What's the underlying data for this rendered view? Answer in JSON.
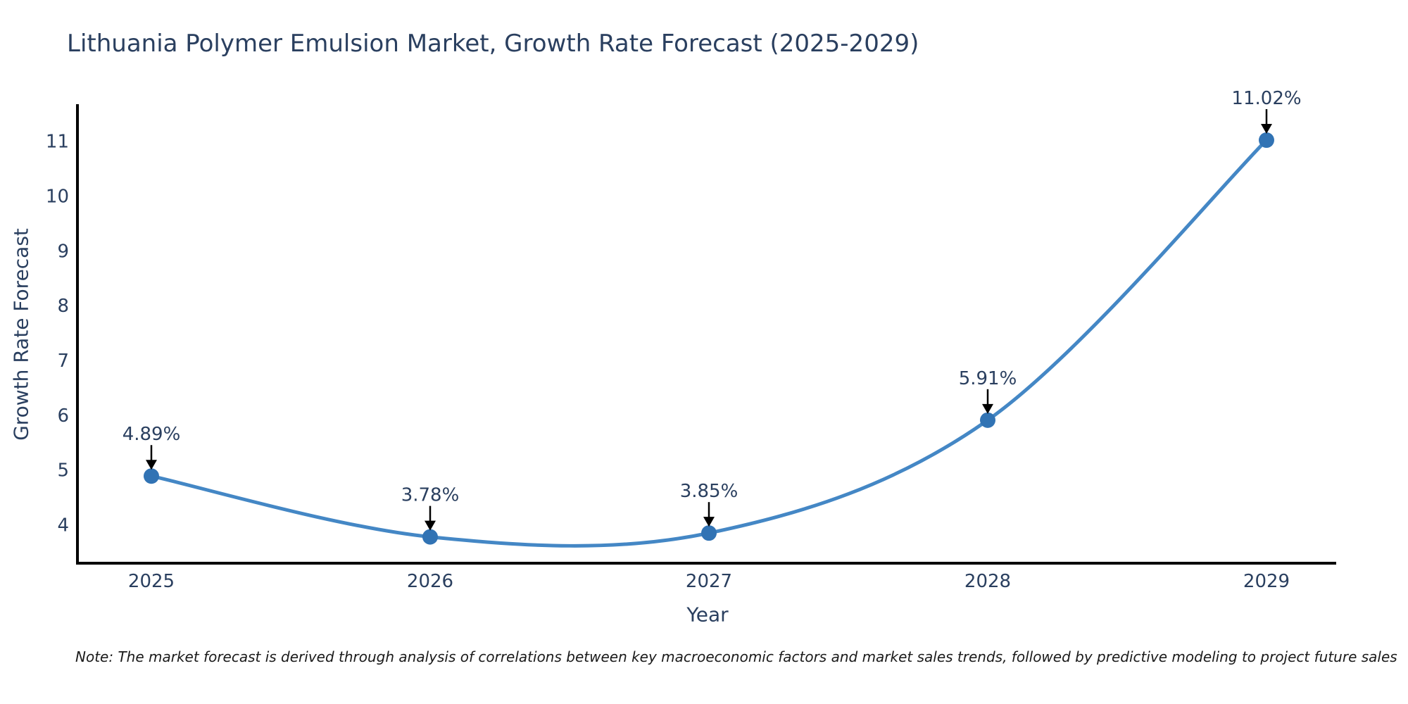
{
  "chart_data": {
    "type": "line",
    "title": "Lithuania Polymer Emulsion Market, Growth Rate Forecast (2025-2029)",
    "xlabel": "Year",
    "ylabel": "Growth Rate Forecast",
    "categories": [
      "2025",
      "2026",
      "2027",
      "2028",
      "2029"
    ],
    "series": [
      {
        "name": "Growth Rate Forecast",
        "values": [
          4.89,
          3.78,
          3.85,
          5.91,
          11.02
        ],
        "point_labels": [
          "4.89%",
          "3.78%",
          "3.85%",
          "5.91%",
          "11.02%"
        ]
      }
    ],
    "yticks": [
      4,
      5,
      6,
      7,
      8,
      9,
      10,
      11
    ],
    "ylim": [
      3.3,
      11.65
    ],
    "line_shape": "spline",
    "grid": false,
    "legend": "none",
    "colors": {
      "line": "#4487c5",
      "marker": "#3173b4",
      "axis": "#000000",
      "text": "#2a3f5f",
      "annotation_arrow": "#000000",
      "note": "#1a1a1a"
    },
    "note": "Note: The market forecast is derived through analysis of correlations between key macroeconomic factors and market sales trends, followed by predictive modeling to project future sales"
  }
}
